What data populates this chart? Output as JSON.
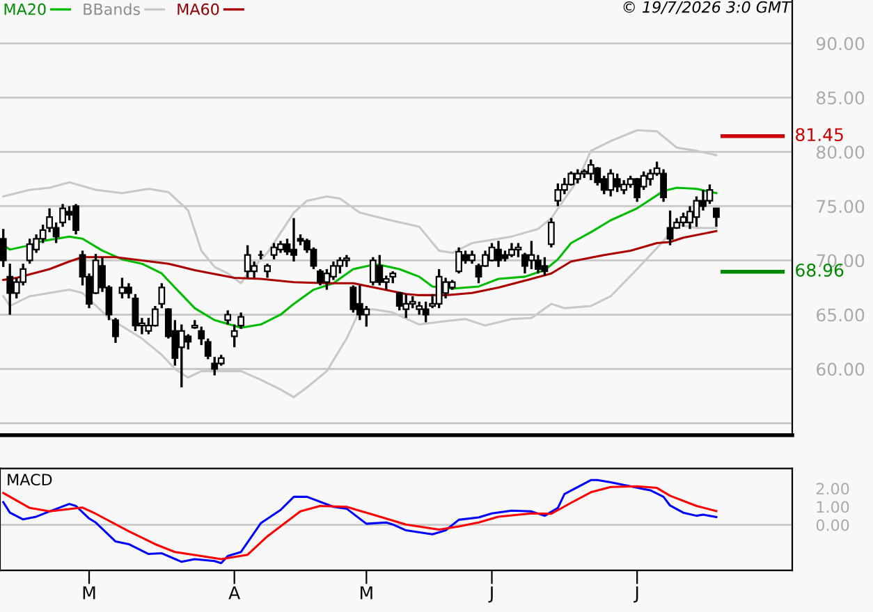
{
  "chart_data": [
    {
      "type": "candlestick",
      "annotations": [
        "© 19/7/2026 3:0 GMT"
      ],
      "legend": "top left",
      "grid": "y",
      "ylim": [
        53.9,
        94.0
      ],
      "yticks": [
        {
          "value": 55,
          "label": null
        },
        {
          "value": 60,
          "label": "60.00"
        },
        {
          "value": 65,
          "label": "65.00"
        },
        {
          "value": 70,
          "label": "70.00"
        },
        {
          "value": 75,
          "label": "75.00"
        },
        {
          "value": 80,
          "label": "80.00"
        },
        {
          "value": 85,
          "label": "85.00"
        },
        {
          "value": 90,
          "label": "90.00"
        }
      ],
      "ref_lines": [
        {
          "axis": "y",
          "value": 81.45,
          "label": "81.45",
          "color": "#cc0000"
        },
        {
          "axis": "y",
          "value": 68.96,
          "label": "68.96",
          "color": "#008800"
        }
      ],
      "categories": [
        null,
        null,
        null,
        null,
        null,
        null,
        null,
        null,
        null,
        null,
        null,
        null,
        null,
        null,
        null,
        null,
        null,
        null,
        null,
        null,
        null,
        null,
        null,
        null,
        null,
        null,
        null,
        null,
        null,
        null,
        null,
        null,
        null,
        null,
        null,
        null,
        null,
        null,
        null,
        null,
        null,
        null,
        null,
        null,
        null,
        null,
        null,
        null,
        null,
        null,
        null,
        null,
        null,
        null,
        null,
        null,
        null,
        null,
        null,
        null,
        null,
        null,
        null,
        null,
        null,
        null,
        null,
        null,
        null,
        null,
        null,
        null,
        null,
        null,
        null,
        null,
        null,
        null,
        null,
        null,
        null,
        null,
        null,
        null,
        null,
        null,
        null,
        null,
        null,
        null,
        null,
        null,
        null,
        null,
        null,
        null,
        null,
        null,
        null,
        null,
        null,
        null,
        null,
        null,
        null,
        null,
        null,
        null,
        null,
        null,
        null,
        null,
        null,
        null,
        null,
        null,
        null,
        null,
        null,
        null
      ],
      "ohlc": [
        [
          72.0,
          72.9,
          69.4,
          70.0
        ],
        [
          68.5,
          69.7,
          65.0,
          67.0
        ],
        [
          67.0,
          68.4,
          66.5,
          68.0
        ],
        [
          68.0,
          69.7,
          67.7,
          69.2
        ],
        [
          70.0,
          72.0,
          69.7,
          71.5
        ],
        [
          71.0,
          72.4,
          70.7,
          72.0
        ],
        [
          72.0,
          73.3,
          71.6,
          72.8
        ],
        [
          73.0,
          74.8,
          72.6,
          74.0
        ],
        [
          73.0,
          73.5,
          71.6,
          72.2
        ],
        [
          73.5,
          75.2,
          73.1,
          74.8
        ],
        [
          74.5,
          75.0,
          73.7,
          74.2
        ],
        [
          75.0,
          75.2,
          72.4,
          72.8
        ],
        [
          70.5,
          70.9,
          67.7,
          68.5
        ],
        [
          68.5,
          68.8,
          65.6,
          66.0
        ],
        [
          67.0,
          70.6,
          66.9,
          70.0
        ],
        [
          69.5,
          70.3,
          67.1,
          67.5
        ],
        [
          67.5,
          67.7,
          64.5,
          65.0
        ],
        [
          64.5,
          64.7,
          62.4,
          63.0
        ],
        [
          67.0,
          68.4,
          66.5,
          67.5
        ],
        [
          67.5,
          67.9,
          66.5,
          67.0
        ],
        [
          66.5,
          66.9,
          63.5,
          64.0
        ],
        [
          64.0,
          64.7,
          63.2,
          64.2
        ],
        [
          63.5,
          64.7,
          63.2,
          64.0
        ],
        [
          64.0,
          65.8,
          63.9,
          65.5
        ],
        [
          66.0,
          67.9,
          65.6,
          67.5
        ],
        [
          65.5,
          65.6,
          62.8,
          63.0
        ],
        [
          63.5,
          64.5,
          60.3,
          61.0
        ],
        [
          62.0,
          64.1,
          58.3,
          63.5
        ],
        [
          63.0,
          63.2,
          61.8,
          62.5
        ],
        [
          63.8,
          64.5,
          63.7,
          64.0
        ],
        [
          63.5,
          63.9,
          62.2,
          62.8
        ],
        [
          62.5,
          62.8,
          60.9,
          61.2
        ],
        [
          60.5,
          61.1,
          59.4,
          60.0
        ],
        [
          60.5,
          61.3,
          60.3,
          61.0
        ],
        [
          64.5,
          65.4,
          64.1,
          65.0
        ],
        [
          63.0,
          64.1,
          62.0,
          63.5
        ],
        [
          64.0,
          65.2,
          63.7,
          64.8
        ],
        [
          69.0,
          71.4,
          68.4,
          70.5
        ],
        [
          69.0,
          69.9,
          68.4,
          69.5
        ],
        [
          70.5,
          70.9,
          70.1,
          70.5
        ],
        [
          69.0,
          69.7,
          68.4,
          69.5
        ],
        [
          70.5,
          71.6,
          70.1,
          71.2
        ],
        [
          71.0,
          71.8,
          70.7,
          71.5
        ],
        [
          71.5,
          72.0,
          70.5,
          70.8
        ],
        [
          71.0,
          73.9,
          69.9,
          70.5
        ],
        [
          72.0,
          72.4,
          71.4,
          71.8
        ],
        [
          71.8,
          72.0,
          70.7,
          71.0
        ],
        [
          71.0,
          71.2,
          69.2,
          69.5
        ],
        [
          69.0,
          69.2,
          67.7,
          68.0
        ],
        [
          68.0,
          69.2,
          67.3,
          68.8
        ],
        [
          68.5,
          69.9,
          68.2,
          69.5
        ],
        [
          69.5,
          70.3,
          68.8,
          70.0
        ],
        [
          70.0,
          70.5,
          69.4,
          70.2
        ],
        [
          67.5,
          67.7,
          65.2,
          65.5
        ],
        [
          66.0,
          67.7,
          64.5,
          65.0
        ],
        [
          65.0,
          65.8,
          63.9,
          65.5
        ],
        [
          68.0,
          70.3,
          67.7,
          70.0
        ],
        [
          69.5,
          70.5,
          67.7,
          68.0
        ],
        [
          68.0,
          68.6,
          67.3,
          68.3
        ],
        [
          68.5,
          69.0,
          67.9,
          68.8
        ],
        [
          67.0,
          67.1,
          65.4,
          65.8
        ],
        [
          65.5,
          66.9,
          64.7,
          66.0
        ],
        [
          66.0,
          66.7,
          65.6,
          66.2
        ],
        [
          65.5,
          66.2,
          65.0,
          65.8
        ],
        [
          65.5,
          66.2,
          64.3,
          65.0
        ],
        [
          65.8,
          66.9,
          65.6,
          66.0
        ],
        [
          66.0,
          69.2,
          65.6,
          68.5
        ],
        [
          67.0,
          68.4,
          66.5,
          68.0
        ],
        [
          67.5,
          68.2,
          67.3,
          68.0
        ],
        [
          69.0,
          71.2,
          68.8,
          70.8
        ],
        [
          70.5,
          70.9,
          69.7,
          70.0
        ],
        [
          70.0,
          70.9,
          69.7,
          70.5
        ],
        [
          69.5,
          69.7,
          67.9,
          68.5
        ],
        [
          69.5,
          70.9,
          69.4,
          70.5
        ],
        [
          70.0,
          71.6,
          69.9,
          71.2
        ],
        [
          71.0,
          71.8,
          69.4,
          70.0
        ],
        [
          70.5,
          70.9,
          69.9,
          70.2
        ],
        [
          70.5,
          71.6,
          70.3,
          71.0
        ],
        [
          71.0,
          71.6,
          70.3,
          71.2
        ],
        [
          70.5,
          70.7,
          68.8,
          69.5
        ],
        [
          70.0,
          71.8,
          69.2,
          70.5
        ],
        [
          70.0,
          70.5,
          68.8,
          69.2
        ],
        [
          69.5,
          70.3,
          68.6,
          69.0
        ],
        [
          71.5,
          73.9,
          71.2,
          73.5
        ],
        [
          75.5,
          77.1,
          75.0,
          76.5
        ],
        [
          76.5,
          77.6,
          76.1,
          77.0
        ],
        [
          77.0,
          78.2,
          76.9,
          78.0
        ],
        [
          77.5,
          78.4,
          77.1,
          78.0
        ],
        [
          78.0,
          78.4,
          77.6,
          78.2
        ],
        [
          78.0,
          79.3,
          77.4,
          78.8
        ],
        [
          78.5,
          78.6,
          76.9,
          77.2
        ],
        [
          77.5,
          77.8,
          76.1,
          76.5
        ],
        [
          76.5,
          78.4,
          75.9,
          78.0
        ],
        [
          77.5,
          78.0,
          76.3,
          76.8
        ],
        [
          76.5,
          77.4,
          76.1,
          77.0
        ],
        [
          77.0,
          77.8,
          76.7,
          77.5
        ],
        [
          77.5,
          77.6,
          75.4,
          75.8
        ],
        [
          76.8,
          78.2,
          76.5,
          77.8
        ],
        [
          77.5,
          78.4,
          76.9,
          78.0
        ],
        [
          78.0,
          79.1,
          77.8,
          78.5
        ],
        [
          78.0,
          78.4,
          75.4,
          75.8
        ],
        [
          73.0,
          74.6,
          71.4,
          72.0
        ],
        [
          73.0,
          73.9,
          72.9,
          73.5
        ],
        [
          73.5,
          74.4,
          73.1,
          74.0
        ],
        [
          73.5,
          75.0,
          72.9,
          74.5
        ],
        [
          74.0,
          75.9,
          73.1,
          75.5
        ],
        [
          75.5,
          76.5,
          74.6,
          75.0
        ],
        [
          75.5,
          77.0,
          75.2,
          76.5
        ],
        [
          74.8,
          74.8,
          73.1,
          74.0
        ],
        null,
        null,
        null,
        null,
        null,
        null,
        null,
        null,
        null,
        null,
        null
      ],
      "series": [
        {
          "name": "MA20",
          "type": "line",
          "color": "#00bb00",
          "values": [
            71.4,
            71.0,
            null,
            null,
            71.4,
            null,
            71.8,
            null,
            null,
            null,
            72.2,
            null,
            72.0,
            null,
            null,
            70.9,
            null,
            null,
            70.1,
            null,
            null,
            69.7,
            null,
            null,
            68.8,
            null,
            67.5,
            null,
            null,
            65.6,
            null,
            null,
            64.5,
            null,
            null,
            null,
            63.8,
            null,
            null,
            64.1,
            null,
            null,
            65.0,
            null,
            66.0,
            null,
            null,
            67.3,
            null,
            null,
            67.9,
            null,
            null,
            69.2,
            null,
            null,
            69.6,
            69.6,
            null,
            null,
            69.2,
            null,
            null,
            68.5,
            null,
            67.6,
            null,
            null,
            67.4,
            null,
            null,
            null,
            67.6,
            null,
            null,
            68.3,
            null,
            null,
            null,
            68.5,
            null,
            null,
            69.1,
            null,
            70.1,
            null,
            71.6,
            null,
            null,
            72.6,
            null,
            null,
            73.7,
            null,
            null,
            null,
            74.8,
            null,
            null,
            null,
            76.4,
            null,
            76.7,
            null,
            null,
            76.6,
            null,
            null,
            76.2,
            null,
            null,
            null,
            null,
            null,
            null,
            null,
            null,
            null,
            null,
            null
          ]
        },
        {
          "name": "BBands",
          "type": "line",
          "color": "#c8c8c8",
          "values": [
            75.9,
            null,
            null,
            null,
            76.5,
            null,
            null,
            76.7,
            null,
            null,
            77.2,
            null,
            null,
            null,
            76.5,
            null,
            null,
            null,
            76.2,
            null,
            null,
            null,
            76.6,
            null,
            null,
            76.3,
            null,
            null,
            74.6,
            null,
            70.9,
            null,
            69.4,
            null,
            68.8,
            null,
            67.9,
            68.8,
            null,
            null,
            70.7,
            null,
            null,
            null,
            74.4,
            null,
            75.5,
            null,
            null,
            75.9,
            null,
            75.7,
            null,
            null,
            74.4,
            null,
            null,
            null,
            73.8,
            null,
            null,
            null,
            null,
            73.1,
            null,
            null,
            70.9,
            null,
            70.7,
            null,
            null,
            71.6,
            null,
            null,
            null,
            null,
            null,
            72.2,
            null,
            null,
            null,
            72.9,
            null,
            73.9,
            null,
            null,
            null,
            77.4,
            null,
            80.1,
            null,
            null,
            81.0,
            null,
            null,
            null,
            82.0,
            null,
            null,
            81.9,
            null,
            null,
            80.4,
            null,
            null,
            80.1,
            null,
            null,
            79.7,
            null,
            null,
            null,
            null,
            null,
            null,
            null,
            null,
            null,
            null,
            null
          ]
        },
        {
          "type": "line",
          "color": "#c8c8c8",
          "values": [
            66.7,
            65.8,
            null,
            null,
            66.7,
            null,
            null,
            67.0,
            null,
            null,
            67.3,
            null,
            67.0,
            null,
            null,
            null,
            64.7,
            null,
            null,
            null,
            null,
            62.8,
            null,
            null,
            61.3,
            null,
            60.0,
            null,
            59.2,
            null,
            59.8,
            null,
            null,
            null,
            null,
            null,
            59.8,
            null,
            null,
            59.0,
            null,
            null,
            58.1,
            null,
            57.4,
            null,
            58.3,
            null,
            null,
            59.8,
            null,
            null,
            62.8,
            null,
            65.4,
            null,
            65.5,
            null,
            null,
            65.2,
            null,
            null,
            null,
            64.1,
            null,
            null,
            null,
            64.4,
            null,
            null,
            64.6,
            null,
            null,
            64.0,
            null,
            null,
            null,
            64.6,
            null,
            null,
            64.7,
            null,
            null,
            66.0,
            null,
            65.6,
            null,
            null,
            null,
            65.8,
            null,
            null,
            66.7,
            null,
            null,
            null,
            69.2,
            null,
            null,
            null,
            71.8,
            null,
            73.3,
            null,
            null,
            73.0,
            null,
            null,
            73.0,
            null,
            null,
            null,
            null,
            null,
            null,
            null,
            null,
            null,
            null,
            null
          ]
        },
        {
          "name": "MA60",
          "type": "line",
          "color": "#aa0000",
          "values": [
            68.2,
            null,
            68.4,
            null,
            null,
            null,
            null,
            69.2,
            null,
            null,
            69.9,
            null,
            70.3,
            null,
            null,
            null,
            null,
            70.3,
            null,
            null,
            null,
            70.0,
            null,
            null,
            null,
            69.7,
            null,
            null,
            null,
            69.1,
            null,
            null,
            null,
            null,
            null,
            68.4,
            null,
            null,
            null,
            68.3,
            null,
            null,
            null,
            null,
            68.0,
            null,
            null,
            null,
            null,
            67.9,
            null,
            null,
            null,
            67.9,
            null,
            null,
            null,
            67.4,
            null,
            null,
            null,
            66.9,
            null,
            66.8,
            null,
            null,
            null,
            66.8,
            null,
            null,
            null,
            67.0,
            null,
            null,
            null,
            67.5,
            null,
            null,
            null,
            null,
            68.3,
            null,
            null,
            68.8,
            null,
            null,
            69.9,
            null,
            null,
            null,
            null,
            70.5,
            null,
            null,
            null,
            70.9,
            null,
            null,
            null,
            71.6,
            null,
            71.7,
            null,
            72.1,
            null,
            null,
            null,
            null,
            72.7,
            null,
            null,
            null,
            null,
            null,
            null,
            null,
            null,
            null,
            null,
            null
          ]
        }
      ]
    },
    {
      "type": "line",
      "title": "MACD",
      "ylim": [
        -2.5,
        3.1
      ],
      "categories": [
        null,
        null,
        null,
        null,
        null,
        null,
        null,
        null,
        null,
        null,
        null,
        null,
        null,
        "M",
        null,
        null,
        null,
        null,
        null,
        null,
        null,
        null,
        null,
        null,
        null,
        null,
        null,
        null,
        null,
        null,
        null,
        null,
        null,
        null,
        null,
        "A",
        null,
        null,
        null,
        null,
        null,
        null,
        null,
        null,
        null,
        null,
        null,
        null,
        null,
        null,
        null,
        null,
        null,
        null,
        null,
        "M",
        null,
        null,
        null,
        null,
        null,
        null,
        null,
        null,
        null,
        null,
        null,
        null,
        null,
        null,
        null,
        null,
        null,
        null,
        "J",
        null,
        null,
        null,
        null,
        null,
        null,
        null,
        null,
        null,
        null,
        null,
        null,
        null,
        null,
        null,
        null,
        null,
        null,
        null,
        null,
        null,
        "J",
        null,
        null,
        null,
        null,
        null,
        null,
        null,
        null,
        null,
        null,
        null,
        null,
        null,
        null,
        null,
        null,
        null,
        null,
        null,
        null,
        null,
        null,
        null
      ],
      "yticks": [
        {
          "value": 0,
          "label": "0.00"
        },
        {
          "value": 1,
          "label": "1.00"
        },
        {
          "value": 2,
          "label": "2.00"
        }
      ],
      "ref_lines": [
        {
          "axis": "y",
          "value": 0,
          "color": "#c8c8c8"
        }
      ],
      "series": [
        {
          "color": "#0000ff",
          "values": [
            1.25,
            0.67,
            null,
            0.3,
            null,
            0.45,
            null,
            0.74,
            null,
            null,
            1.15,
            1.04,
            null,
            0.35,
            0.13,
            null,
            null,
            -0.91,
            null,
            -1.06,
            null,
            null,
            -1.6,
            null,
            -1.56,
            null,
            null,
            -2.03,
            null,
            -1.88,
            null,
            null,
            -1.99,
            -2.1,
            -1.71,
            null,
            -1.49,
            null,
            null,
            0.09,
            null,
            null,
            0.82,
            null,
            1.54,
            null,
            1.54,
            null,
            null,
            null,
            0.99,
            null,
            0.89,
            null,
            null,
            0.06,
            null,
            null,
            0.13,
            0.02,
            null,
            -0.3,
            null,
            null,
            null,
            -0.52,
            null,
            -0.3,
            null,
            0.28,
            null,
            null,
            0.41,
            null,
            0.63,
            null,
            null,
            0.78,
            null,
            null,
            0.74,
            null,
            0.5,
            null,
            0.93,
            1.69,
            null,
            null,
            null,
            2.46,
            2.46,
            null,
            2.34,
            null,
            null,
            2.12,
            null,
            1.97,
            1.9,
            null,
            1.54,
            1.06,
            null,
            0.67,
            null,
            0.5,
            0.56,
            null,
            0.43,
            null,
            null,
            null,
            null,
            null,
            null,
            null,
            null,
            null,
            null,
            null
          ]
        },
        {
          "color": "#ff0000",
          "values": [
            1.75,
            null,
            null,
            null,
            0.93,
            null,
            null,
            0.74,
            null,
            null,
            null,
            null,
            0.95,
            null,
            0.61,
            null,
            null,
            null,
            null,
            -0.35,
            null,
            null,
            null,
            -1.06,
            null,
            null,
            -1.49,
            null,
            null,
            null,
            -1.71,
            null,
            null,
            -1.88,
            null,
            null,
            null,
            -1.64,
            null,
            null,
            -0.63,
            null,
            null,
            null,
            null,
            0.74,
            null,
            null,
            1.04,
            null,
            null,
            null,
            0.99,
            null,
            null,
            null,
            0.56,
            null,
            null,
            null,
            null,
            0.02,
            null,
            null,
            null,
            null,
            -0.26,
            null,
            null,
            -0.09,
            null,
            null,
            0.13,
            null,
            null,
            0.45,
            null,
            null,
            null,
            null,
            0.63,
            null,
            null,
            0.61,
            null,
            null,
            1.21,
            null,
            null,
            1.79,
            null,
            null,
            2.08,
            null,
            null,
            null,
            2.12,
            null,
            null,
            2.03,
            null,
            1.6,
            null,
            null,
            null,
            1.04,
            null,
            null,
            0.76,
            null,
            null,
            null,
            null,
            null,
            null,
            null,
            null,
            null,
            null,
            null
          ]
        }
      ]
    }
  ]
}
